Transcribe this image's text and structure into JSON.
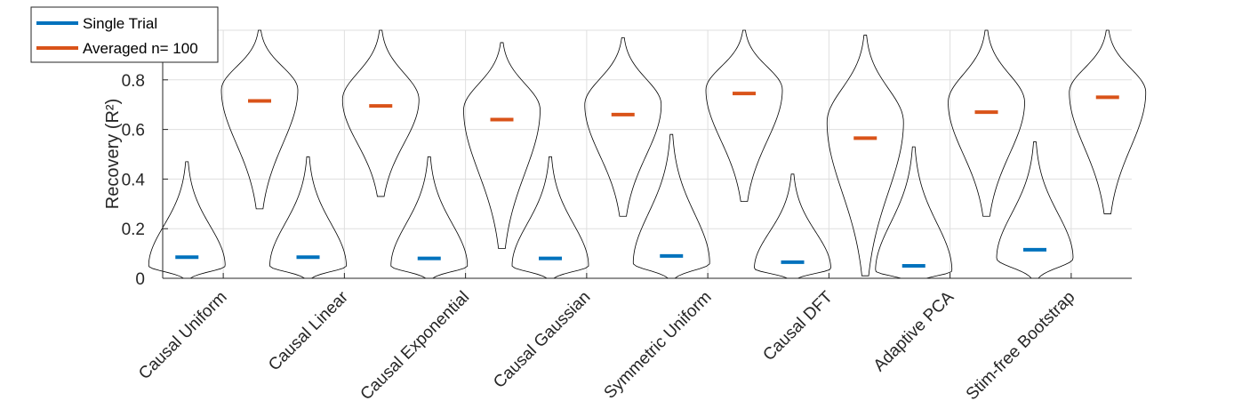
{
  "chart_data": {
    "type": "violin",
    "title": "",
    "xlabel": "",
    "ylabel": "Recovery (R²)",
    "ylim": [
      0,
      1
    ],
    "yticks": [
      0,
      0.2,
      0.4,
      0.6,
      0.8
    ],
    "ytick_labels": [
      "0",
      "0.2",
      "0.4",
      "0.6",
      "0.8"
    ],
    "grid": true,
    "legend_position": "top-left",
    "categories": [
      "Causal Uniform",
      "Causal Linear",
      "Causal Exponential",
      "Causal Gaussian",
      "Symmetric Uniform",
      "Causal DFT",
      "Adaptive PCA",
      "Stim-free Bootstrap"
    ],
    "series": [
      {
        "name": "Single Trial",
        "color": "#0072BD",
        "medians": [
          0.085,
          0.085,
          0.08,
          0.08,
          0.09,
          0.065,
          0.05,
          0.115
        ],
        "min": [
          0.0,
          0.0,
          0.0,
          0.0,
          0.0,
          0.0,
          0.0,
          0.0
        ],
        "max": [
          0.47,
          0.49,
          0.49,
          0.49,
          0.58,
          0.42,
          0.53,
          0.55
        ],
        "mode": [
          0.05,
          0.05,
          0.05,
          0.05,
          0.06,
          0.04,
          0.03,
          0.08
        ],
        "max_half_width": [
          0.22,
          0.22,
          0.22,
          0.22,
          0.22,
          0.22,
          0.22,
          0.22
        ]
      },
      {
        "name": "Averaged n= 100",
        "color": "#D95319",
        "medians": [
          0.715,
          0.695,
          0.64,
          0.66,
          0.745,
          0.565,
          0.67,
          0.73
        ],
        "min": [
          0.28,
          0.33,
          0.12,
          0.25,
          0.31,
          0.01,
          0.25,
          0.26
        ],
        "max": [
          1.0,
          1.0,
          0.95,
          0.97,
          1.0,
          0.98,
          1.0,
          1.0
        ],
        "mode": [
          0.76,
          0.72,
          0.68,
          0.7,
          0.76,
          0.63,
          0.71,
          0.75
        ],
        "max_half_width": [
          0.22,
          0.22,
          0.22,
          0.22,
          0.22,
          0.22,
          0.22,
          0.22
        ]
      }
    ]
  }
}
